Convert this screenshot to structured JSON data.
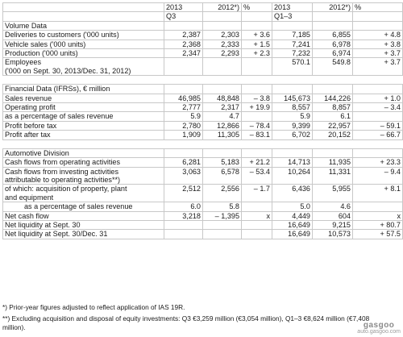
{
  "header": {
    "year_2013": "2013",
    "year_2012": "2012*)",
    "pct": "%",
    "period_q3": "Q3",
    "period_q1_3": "Q1–3"
  },
  "sections": {
    "volume": "Volume Data",
    "financial": "Financial Data (IFRSs), € million",
    "automotive": "Automotive Division"
  },
  "rows": [
    {
      "label": "Deliveries to customers ('000 units)",
      "q3_2013": "2,387",
      "q3_2012": "2,303",
      "q3_pct": "+ 3.6",
      "q13_2013": "7,185",
      "q13_2012": "6,855",
      "q13_pct": "+ 4.8"
    },
    {
      "label": "Vehicle sales ('000 units)",
      "q3_2013": "2,368",
      "q3_2012": "2,333",
      "q3_pct": "+ 1.5",
      "q13_2013": "7,241",
      "q13_2012": "6,978",
      "q13_pct": "+ 3.8"
    },
    {
      "label": "Production ('000 units)",
      "q3_2013": "2,347",
      "q3_2012": "2,293",
      "q3_pct": "+ 2.3",
      "q13_2013": "7,232",
      "q13_2012": "6,974",
      "q13_pct": "+ 3.7"
    },
    {
      "label": "Employees",
      "label2": "('000 on Sept. 30, 2013/Dec. 31, 2012)",
      "q3_2013": "",
      "q3_2012": "",
      "q3_pct": "",
      "q13_2013": "570.1",
      "q13_2012": "549.8",
      "q13_pct": "+ 3.7"
    },
    {
      "label": "Sales revenue",
      "q3_2013": "46,985",
      "q3_2012": "48,848",
      "q3_pct": "– 3.8",
      "q13_2013": "145,673",
      "q13_2012": "144,226",
      "q13_pct": "+ 1.0"
    },
    {
      "label": "Operating profit",
      "q3_2013": "2,777",
      "q3_2012": "2,317",
      "q3_pct": "+ 19.9",
      "q13_2013": "8,557",
      "q13_2012": "8,857",
      "q13_pct": "– 3.4"
    },
    {
      "label": "as a percentage of sales revenue",
      "q3_2013": "5.9",
      "q3_2012": "4.7",
      "q3_pct": "",
      "q13_2013": "5.9",
      "q13_2012": "6.1",
      "q13_pct": ""
    },
    {
      "label": "Profit before tax",
      "q3_2013": "2,780",
      "q3_2012": "12,866",
      "q3_pct": "– 78.4",
      "q13_2013": "9,399",
      "q13_2012": "22,957",
      "q13_pct": "– 59.1"
    },
    {
      "label": "Profit after tax",
      "q3_2013": "1,909",
      "q3_2012": "11,305",
      "q3_pct": "– 83.1",
      "q13_2013": "6,702",
      "q13_2012": "20,152",
      "q13_pct": "– 66.7"
    },
    {
      "label": "Cash flows from operating activities",
      "q3_2013": "6,281",
      "q3_2012": "5,183",
      "q3_pct": "+ 21.2",
      "q13_2013": "14,713",
      "q13_2012": "11,935",
      "q13_pct": "+ 23.3"
    },
    {
      "label": "Cash flows from investing activities",
      "label2": "attributable to operating activities**)",
      "q3_2013": "3,063",
      "q3_2012": "6,578",
      "q3_pct": "– 53.4",
      "q13_2013": "10,264",
      "q13_2012": "11,331",
      "q13_pct": "– 9.4"
    },
    {
      "label": "of which: acquisition of property, plant",
      "label2": "and equipment",
      "q3_2013": "2,512",
      "q3_2012": "2,556",
      "q3_pct": "– 1.7",
      "q13_2013": "6,436",
      "q13_2012": "5,955",
      "q13_pct": "+ 8.1"
    },
    {
      "label": "as a percentage of sales revenue",
      "q3_2013": "6.0",
      "q3_2012": "5.8",
      "q3_pct": "",
      "q13_2013": "5.0",
      "q13_2012": "4.6",
      "q13_pct": ""
    },
    {
      "label": "Net cash flow",
      "q3_2013": "3,218",
      "q3_2012": "– 1,395",
      "q3_pct": "x",
      "q13_2013": "4,449",
      "q13_2012": "604",
      "q13_pct": "x"
    },
    {
      "label": "Net liquidity at Sept. 30",
      "q3_2013": "",
      "q3_2012": "",
      "q3_pct": "",
      "q13_2013": "16,649",
      "q13_2012": "9,215",
      "q13_pct": "+ 80.7"
    },
    {
      "label": "Net liquidity at Sept. 30/Dec. 31",
      "q3_2013": "",
      "q3_2012": "",
      "q3_pct": "",
      "q13_2013": "16,649",
      "q13_2012": "10,573",
      "q13_pct": "+ 57.5"
    }
  ],
  "footnotes": {
    "note1": "*) Prior-year figures adjusted to reflect application of IAS 19R.",
    "note2": "**) Excluding acquisition and disposal of equity investments: Q3 €3,259 million (€3,054 million), Q1–3 €8,624 million (€7,408 million)."
  },
  "watermark": {
    "logo": "gasgoo",
    "url": "auto.gasgoo.com"
  }
}
